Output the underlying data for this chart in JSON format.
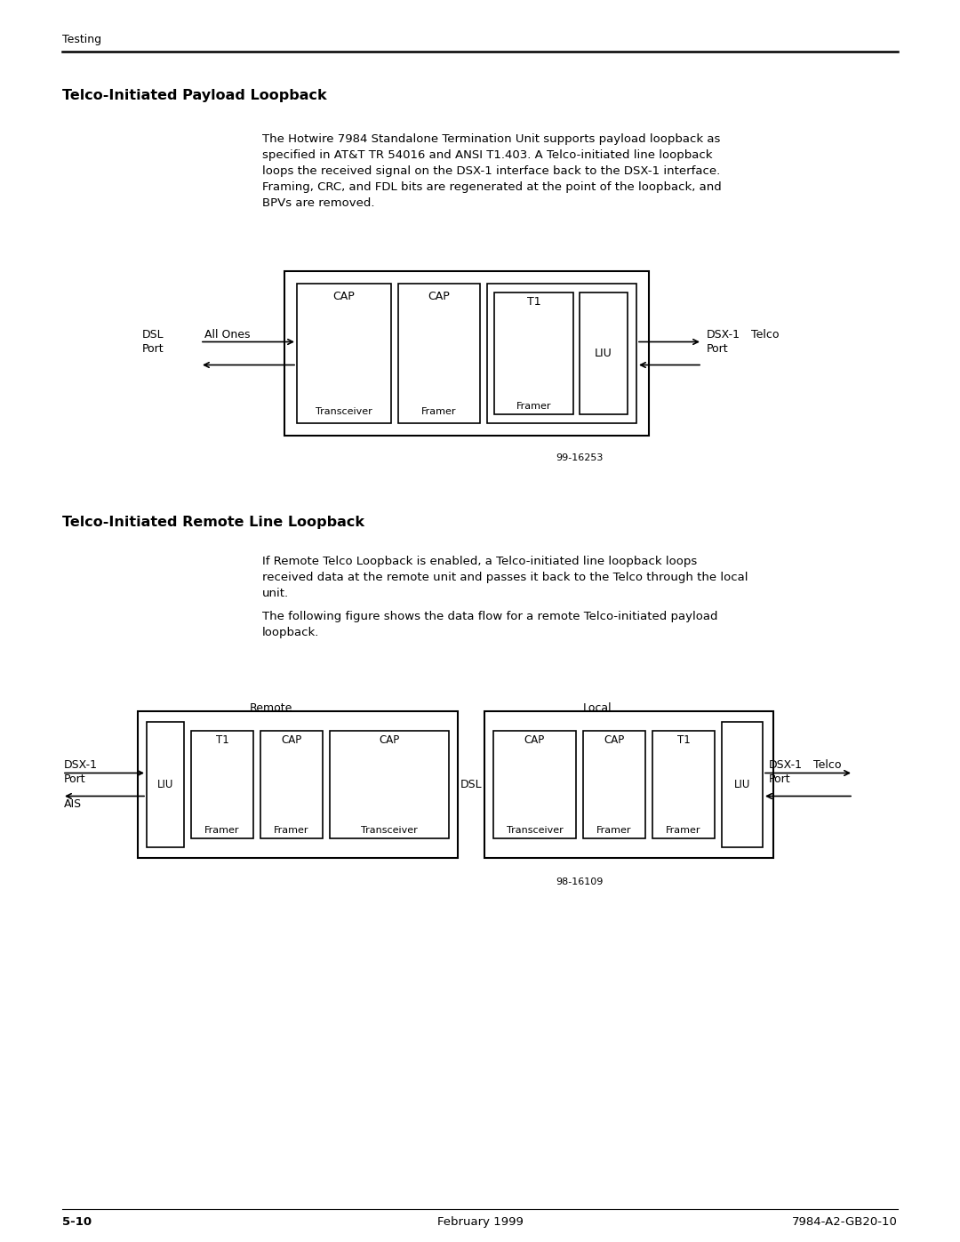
{
  "page_bg": "#ffffff",
  "header_text": "Testing",
  "section1_title": "Telco-Initiated Payload Loopback",
  "section1_para_line1": "The Hotwire 7984 Standalone Termination Unit supports payload loopback as",
  "section1_para_line2": "specified in AT&T TR 54016 and ANSI T1.403. A Telco-initiated line loopback",
  "section1_para_line3": "loops the received signal on the DSX-1 interface back to the DSX-1 interface.",
  "section1_para_line4": "Framing, CRC, and FDL bits are regenerated at the point of the loopback, and",
  "section1_para_line5": "BPVs are removed.",
  "section2_title": "Telco-Initiated Remote Line Loopback",
  "section2_para1_line1": "If Remote Telco Loopback is enabled, a Telco-initiated line loopback loops",
  "section2_para1_line2": "received data at the remote unit and passes it back to the Telco through the local",
  "section2_para1_line3": "unit.",
  "section2_para2_line1": "The following figure shows the data flow for a remote Telco-initiated payload",
  "section2_para2_line2": "loopback.",
  "footer_left": "5-10",
  "footer_center": "February 1999",
  "footer_right": "7984-A2-GB20-10",
  "fig1_number": "99-16253",
  "fig2_number": "98-16109"
}
